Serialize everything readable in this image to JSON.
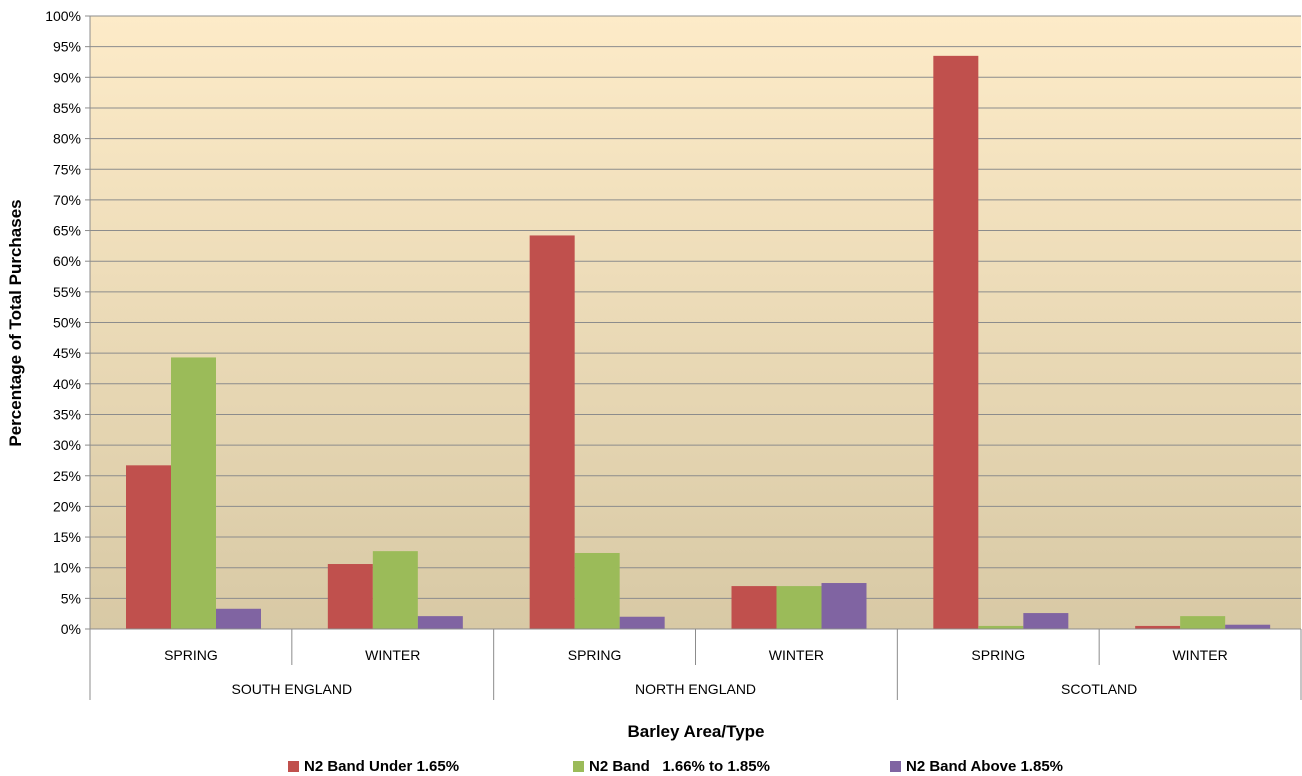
{
  "chart_data": {
    "type": "bar",
    "title": "",
    "xlabel": "Barley Area/Type",
    "ylabel": "Percentage of Total Purchases",
    "ylim": [
      0,
      100
    ],
    "yticks": [
      "0%",
      "5%",
      "10%",
      "15%",
      "20%",
      "25%",
      "30%",
      "35%",
      "40%",
      "45%",
      "50%",
      "55%",
      "60%",
      "65%",
      "70%",
      "75%",
      "80%",
      "85%",
      "90%",
      "95%",
      "100%"
    ],
    "grid": true,
    "legend_position": "bottom",
    "groups": [
      {
        "label": "SOUTH ENGLAND",
        "categories": [
          "SPRING",
          "WINTER"
        ]
      },
      {
        "label": "NORTH ENGLAND",
        "categories": [
          "SPRING",
          "WINTER"
        ]
      },
      {
        "label": "SCOTLAND",
        "categories": [
          "SPRING",
          "WINTER"
        ]
      }
    ],
    "series": [
      {
        "name": "N2 Band Under 1.65%",
        "color": "#c0504d",
        "values": [
          26.7,
          10.6,
          64.2,
          7.0,
          93.5,
          0.5
        ]
      },
      {
        "name": "N2 Band   1.66% to 1.85%",
        "color": "#9bbb59",
        "values": [
          44.3,
          12.7,
          12.4,
          7.0,
          0.5,
          2.1
        ]
      },
      {
        "name": "N2 Band Above 1.85%",
        "color": "#8064a2",
        "values": [
          3.3,
          2.1,
          2.0,
          7.5,
          2.6,
          0.7
        ]
      }
    ],
    "background_gradient": [
      "#fdebc8",
      "#d8c9a5"
    ]
  }
}
